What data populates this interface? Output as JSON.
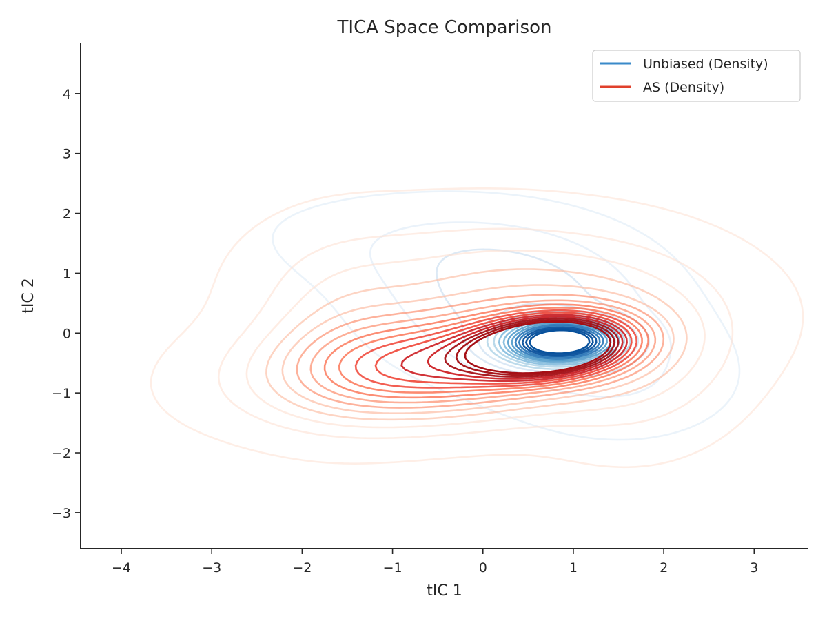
{
  "chart_data": {
    "type": "contour",
    "title": "TICA Space Comparison",
    "xlabel": "tIC 1",
    "ylabel": "tIC 2",
    "xlim": [
      -4.45,
      3.6
    ],
    "ylim": [
      -3.6,
      4.85
    ],
    "xticks": [
      -4,
      -3,
      -2,
      -1,
      0,
      1,
      2,
      3
    ],
    "yticks": [
      -3,
      -2,
      -1,
      0,
      1,
      2,
      3,
      4
    ],
    "xtick_labels": [
      "−4",
      "−3",
      "−2",
      "−1",
      "0",
      "1",
      "2",
      "3"
    ],
    "ytick_labels": [
      "−3",
      "−2",
      "−1",
      "0",
      "1",
      "2",
      "3",
      "4"
    ],
    "grid": false,
    "legend_position": "top-right",
    "series": [
      {
        "name": "Unbiased (Density)",
        "color": "#3a8ac9",
        "colormap": "Blues",
        "palette": [
          "#dbe9f6",
          "#c6dbef",
          "#9ecae1",
          "#6baed6",
          "#4292c6",
          "#2171b5",
          "#08519c"
        ],
        "mode": {
          "x": 0.85,
          "y": -0.15
        },
        "contour_extent_x": [
          -2.5,
          2.5
        ],
        "contour_extent_y": [
          -1.9,
          2.3
        ]
      },
      {
        "name": "AS (Density)",
        "color": "#e0402c",
        "colormap": "Reds",
        "palette": [
          "#fee0d2",
          "#fcbba1",
          "#fc9272",
          "#fb6a4a",
          "#ef3b2c",
          "#cb181d",
          "#a50f15"
        ],
        "mode": {
          "x": 0.7,
          "y": -0.2
        },
        "contour_extent_x": [
          -2.7,
          2.7
        ],
        "contour_extent_y": [
          -2.55,
          2.9
        ]
      }
    ]
  }
}
